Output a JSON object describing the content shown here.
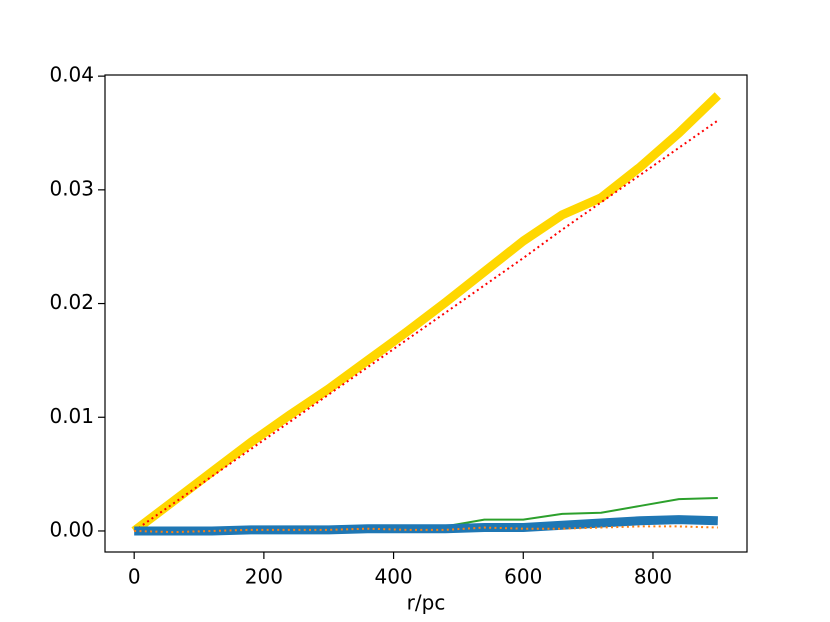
{
  "chart_data": {
    "type": "line",
    "x_label": "r/pc",
    "x": [
      0,
      60,
      120,
      180,
      240,
      300,
      360,
      420,
      480,
      540,
      600,
      660,
      720,
      780,
      840,
      900
    ],
    "series": [
      {
        "color": "#ffd700",
        "linewidth": 9,
        "linestyle": "solid",
        "values": [
          0,
          0.0026,
          0.0052,
          0.0078,
          0.0102,
          0.0125,
          0.015,
          0.0175,
          0.0201,
          0.0228,
          0.0255,
          0.0278,
          0.0293,
          0.032,
          0.035,
          0.0383
        ]
      },
      {
        "color": "#ff0000",
        "linewidth": 2,
        "linestyle": "dotted",
        "values": [
          0,
          0.0024,
          0.0048,
          0.0072,
          0.0096,
          0.012,
          0.0144,
          0.0168,
          0.0192,
          0.0216,
          0.024,
          0.0265,
          0.0289,
          0.0313,
          0.0337,
          0.0361
        ]
      },
      {
        "color": "#2ca02c",
        "linewidth": 2,
        "linestyle": "solid",
        "values": [
          0,
          0,
          0,
          0.0001,
          0.0001,
          0.0002,
          0.0003,
          0.0004,
          0.0004,
          0.001,
          0.001,
          0.0015,
          0.0016,
          0.0022,
          0.0028,
          0.0029
        ]
      },
      {
        "color": "#1f77b4",
        "linewidth": 9,
        "linestyle": "solid",
        "values": [
          0,
          0,
          0,
          0.0001,
          0.0001,
          0.0001,
          0.0002,
          0.0002,
          0.0002,
          0.0003,
          0.0003,
          0.0005,
          0.0007,
          0.0009,
          0.001,
          0.0009
        ]
      },
      {
        "color": "#ff7f0e",
        "linewidth": 2,
        "linestyle": "dotted",
        "values": [
          0,
          -0.0001,
          0,
          0.0001,
          0.0001,
          0.0001,
          0.0002,
          0.0001,
          0.0001,
          0.0003,
          0.0002,
          0.0002,
          0.0003,
          0.0004,
          0.0004,
          0.0003
        ]
      }
    ],
    "xlim": [
      -45,
      945
    ],
    "xticks": [
      0,
      200,
      400,
      600,
      800
    ],
    "ylim": [
      -0.00185,
      0.0401
    ],
    "yticks": [
      {
        "value": 0,
        "label": "0.00"
      },
      {
        "value": 0.01,
        "label": "0.01"
      },
      {
        "value": 0.02,
        "label": "0.02"
      },
      {
        "value": 0.03,
        "label": "0.03"
      },
      {
        "value": 0.04,
        "label": "0.04"
      }
    ],
    "grid": false
  }
}
